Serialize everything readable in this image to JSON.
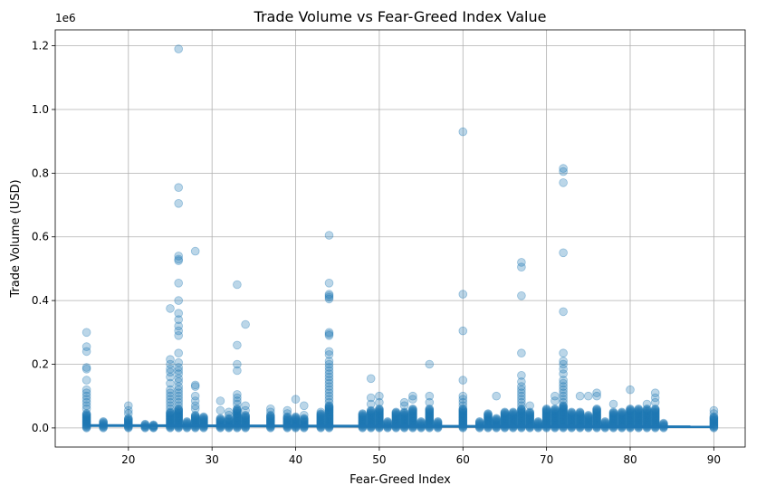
{
  "chart_data": {
    "type": "scatter",
    "title": "Trade Volume vs Fear-Greed Index Value",
    "xlabel": "Fear-Greed Index",
    "ylabel": "Trade Volume (USD)",
    "y_offset_label": "1e6",
    "xlim": [
      11.25,
      93.75
    ],
    "ylim": [
      -0.06,
      1.25
    ],
    "y_unit_multiplier": 1000000,
    "xticks": [
      20,
      30,
      40,
      50,
      60,
      70,
      80,
      90
    ],
    "yticks": [
      0.0,
      0.2,
      0.4,
      0.6,
      0.8,
      1.0,
      1.2
    ],
    "ytick_labels": [
      "0.0",
      "0.2",
      "0.4",
      "0.6",
      "0.8",
      "1.0",
      "1.2"
    ],
    "grid": true,
    "point_color": "#1f77b4",
    "point_alpha": 0.3,
    "trend_line": {
      "x": [
        15,
        90
      ],
      "y": [
        0.0075,
        0.0035
      ],
      "color": "#1f77b4"
    },
    "columns": [
      {
        "x": 15,
        "base_max": 0.045,
        "outliers": [
          0.3,
          0.255,
          0.24,
          0.19,
          0.185,
          0.15,
          0.12,
          0.11,
          0.1,
          0.09,
          0.08,
          0.07,
          0.06
        ]
      },
      {
        "x": 17,
        "base_max": 0.02,
        "outliers": []
      },
      {
        "x": 20,
        "base_max": 0.03,
        "outliers": [
          0.07,
          0.055,
          0.045
        ]
      },
      {
        "x": 22,
        "base_max": 0.012,
        "outliers": []
      },
      {
        "x": 23,
        "base_max": 0.01,
        "outliers": []
      },
      {
        "x": 25,
        "base_max": 0.05,
        "outliers": [
          0.375,
          0.215,
          0.2,
          0.185,
          0.175,
          0.16,
          0.14,
          0.12,
          0.11,
          0.1,
          0.09,
          0.08,
          0.07,
          0.06
        ]
      },
      {
        "x": 26,
        "base_max": 0.06,
        "outliers": [
          1.19,
          0.755,
          0.705,
          0.54,
          0.53,
          0.525,
          0.455,
          0.4,
          0.36,
          0.34,
          0.32,
          0.305,
          0.29,
          0.235,
          0.205,
          0.19,
          0.18,
          0.17,
          0.155,
          0.145,
          0.13,
          0.12,
          0.11,
          0.1,
          0.09,
          0.08,
          0.07
        ]
      },
      {
        "x": 27,
        "base_max": 0.02,
        "outliers": []
      },
      {
        "x": 28,
        "base_max": 0.04,
        "outliers": [
          0.555,
          0.135,
          0.13,
          0.1,
          0.085,
          0.07,
          0.06
        ]
      },
      {
        "x": 29,
        "base_max": 0.035,
        "outliers": []
      },
      {
        "x": 31,
        "base_max": 0.03,
        "outliers": [
          0.085,
          0.055
        ]
      },
      {
        "x": 32,
        "base_max": 0.03,
        "outliers": [
          0.05,
          0.04
        ]
      },
      {
        "x": 33,
        "base_max": 0.06,
        "outliers": [
          0.45,
          0.26,
          0.2,
          0.18,
          0.105,
          0.095,
          0.085,
          0.075
        ]
      },
      {
        "x": 34,
        "base_max": 0.04,
        "outliers": [
          0.325,
          0.07,
          0.055
        ]
      },
      {
        "x": 37,
        "base_max": 0.04,
        "outliers": [
          0.06,
          0.05
        ]
      },
      {
        "x": 39,
        "base_max": 0.035,
        "outliers": [
          0.055,
          0.045
        ]
      },
      {
        "x": 40,
        "base_max": 0.035,
        "outliers": [
          0.09
        ]
      },
      {
        "x": 41,
        "base_max": 0.03,
        "outliers": [
          0.07,
          0.04
        ]
      },
      {
        "x": 43,
        "base_max": 0.045,
        "outliers": [
          0.05
        ]
      },
      {
        "x": 44,
        "base_max": 0.07,
        "outliers": [
          0.605,
          0.455,
          0.42,
          0.415,
          0.41,
          0.405,
          0.3,
          0.295,
          0.29,
          0.24,
          0.23,
          0.21,
          0.2,
          0.19,
          0.18,
          0.17,
          0.16,
          0.15,
          0.14,
          0.13,
          0.12,
          0.11,
          0.1,
          0.09,
          0.08
        ]
      },
      {
        "x": 48,
        "base_max": 0.045,
        "outliers": []
      },
      {
        "x": 49,
        "base_max": 0.055,
        "outliers": [
          0.155,
          0.095,
          0.075
        ]
      },
      {
        "x": 50,
        "base_max": 0.06,
        "outliers": [
          0.1,
          0.08
        ]
      },
      {
        "x": 51,
        "base_max": 0.02,
        "outliers": []
      },
      {
        "x": 52,
        "base_max": 0.05,
        "outliers": []
      },
      {
        "x": 53,
        "base_max": 0.05,
        "outliers": [
          0.08,
          0.07
        ]
      },
      {
        "x": 54,
        "base_max": 0.06,
        "outliers": [
          0.1,
          0.09
        ]
      },
      {
        "x": 55,
        "base_max": 0.02,
        "outliers": []
      },
      {
        "x": 56,
        "base_max": 0.06,
        "outliers": [
          0.2,
          0.1,
          0.08
        ]
      },
      {
        "x": 57,
        "base_max": 0.02,
        "outliers": []
      },
      {
        "x": 60,
        "base_max": 0.06,
        "outliers": [
          0.93,
          0.42,
          0.305,
          0.15,
          0.1,
          0.09,
          0.08,
          0.07
        ]
      },
      {
        "x": 62,
        "base_max": 0.02,
        "outliers": []
      },
      {
        "x": 63,
        "base_max": 0.045,
        "outliers": []
      },
      {
        "x": 64,
        "base_max": 0.03,
        "outliers": [
          0.1
        ]
      },
      {
        "x": 65,
        "base_max": 0.05,
        "outliers": []
      },
      {
        "x": 66,
        "base_max": 0.05,
        "outliers": []
      },
      {
        "x": 67,
        "base_max": 0.06,
        "outliers": [
          0.52,
          0.505,
          0.415,
          0.235,
          0.165,
          0.145,
          0.13,
          0.12,
          0.11,
          0.1,
          0.09,
          0.08,
          0.07
        ]
      },
      {
        "x": 68,
        "base_max": 0.05,
        "outliers": [
          0.07
        ]
      },
      {
        "x": 69,
        "base_max": 0.02,
        "outliers": []
      },
      {
        "x": 70,
        "base_max": 0.06,
        "outliers": []
      },
      {
        "x": 71,
        "base_max": 0.06,
        "outliers": [
          0.1,
          0.085
        ]
      },
      {
        "x": 72,
        "base_max": 0.07,
        "outliers": [
          0.815,
          0.805,
          0.77,
          0.55,
          0.365,
          0.235,
          0.21,
          0.2,
          0.185,
          0.17,
          0.15,
          0.14,
          0.13,
          0.12,
          0.11,
          0.1,
          0.09,
          0.08
        ]
      },
      {
        "x": 73,
        "base_max": 0.05,
        "outliers": []
      },
      {
        "x": 74,
        "base_max": 0.05,
        "outliers": [
          0.1
        ]
      },
      {
        "x": 75,
        "base_max": 0.04,
        "outliers": [
          0.1
        ]
      },
      {
        "x": 76,
        "base_max": 0.06,
        "outliers": [
          0.11,
          0.1
        ]
      },
      {
        "x": 77,
        "base_max": 0.02,
        "outliers": []
      },
      {
        "x": 78,
        "base_max": 0.05,
        "outliers": [
          0.075
        ]
      },
      {
        "x": 79,
        "base_max": 0.05,
        "outliers": []
      },
      {
        "x": 80,
        "base_max": 0.06,
        "outliers": [
          0.12
        ]
      },
      {
        "x": 81,
        "base_max": 0.06,
        "outliers": []
      },
      {
        "x": 82,
        "base_max": 0.06,
        "outliers": [
          0.075
        ]
      },
      {
        "x": 83,
        "base_max": 0.06,
        "outliers": [
          0.11,
          0.095,
          0.08
        ]
      },
      {
        "x": 84,
        "base_max": 0.015,
        "outliers": []
      },
      {
        "x": 90,
        "base_max": 0.035,
        "outliers": [
          0.055,
          0.045
        ]
      }
    ]
  }
}
